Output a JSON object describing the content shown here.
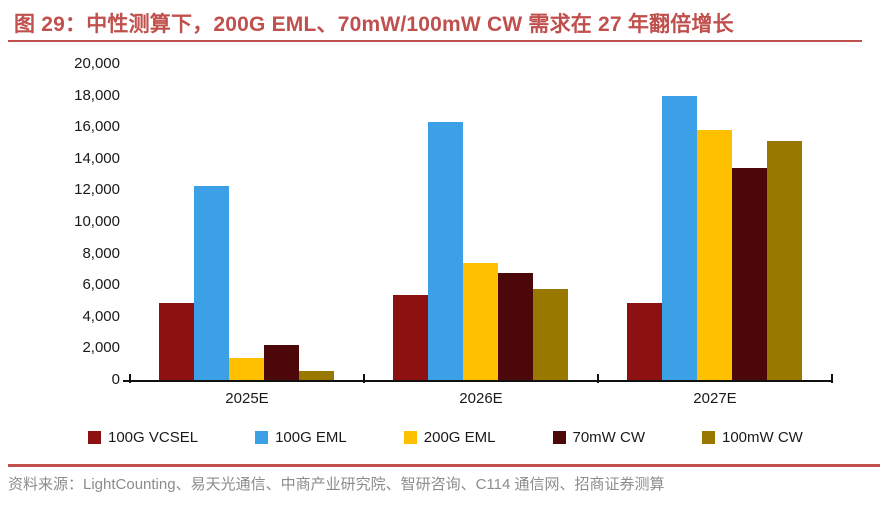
{
  "figure": {
    "title": "图 29：中性测算下，200G EML、70mW/100mW CW 需求在 27 年翻倍增长",
    "title_color": "#C0504D"
  },
  "chart_data": {
    "type": "bar",
    "categories": [
      "2025E",
      "2026E",
      "2027E"
    ],
    "series": [
      {
        "name": "100G VCSEL",
        "color": "#8E1111",
        "values": [
          4900,
          5400,
          4900
        ]
      },
      {
        "name": "100G EML",
        "color": "#3BA0E6",
        "values": [
          12300,
          16300,
          17950
        ]
      },
      {
        "name": "200G EML",
        "color": "#FFC000",
        "values": [
          1400,
          7400,
          15850
        ]
      },
      {
        "name": "70mW CW",
        "color": "#4C0808",
        "values": [
          2200,
          6800,
          13450
        ]
      },
      {
        "name": "100mW CW",
        "color": "#997800",
        "values": [
          550,
          5750,
          15150
        ]
      }
    ],
    "ylim": [
      0,
      20000
    ],
    "ytick_step": 2000,
    "ytick_labels": [
      "20,000",
      "18,000",
      "16,000",
      "14,000",
      "12,000",
      "10,000",
      "8,000",
      "6,000",
      "4,000",
      "2,000",
      "0"
    ],
    "grid": false,
    "legend_position": "bottom",
    "xlabel": "",
    "ylabel": ""
  },
  "footer": {
    "source_text": "资料来源：LightCounting、易天光通信、中商产业研究院、智研咨询、C114 通信网、招商证券测算"
  }
}
